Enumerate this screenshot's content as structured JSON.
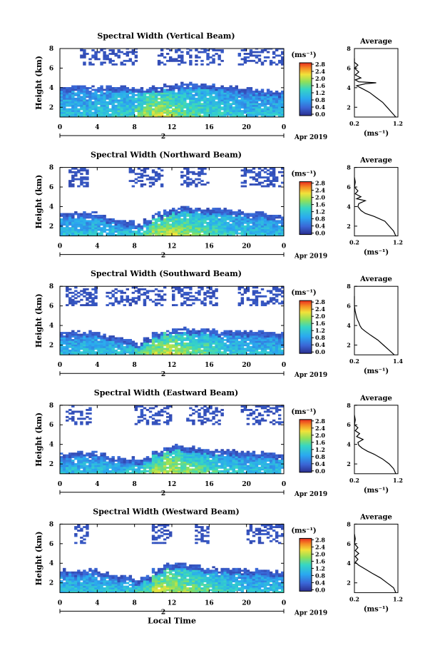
{
  "figure": {
    "colorbar_unit": "(ms⁻¹)",
    "colorbar_ticks": [
      "2.8",
      "2.4",
      "2.0",
      "1.6",
      "1.2",
      "0.8",
      "0.4",
      "0.0"
    ],
    "date_label": "Apr 2019",
    "day_marker": "2",
    "common_xlabel": "Local Time",
    "height_ylabel": "Height (km)",
    "average_title": "Average",
    "average_xlabel": "(ms⁻¹)"
  },
  "chart_data": [
    {
      "type": "heatmap",
      "title": "Spectral Width (Vertical Beam)",
      "xlabel": "",
      "ylabel": "Height (km)",
      "xlim": [
        0,
        24
      ],
      "ylim": [
        1,
        8
      ],
      "xticks": [
        "0",
        "4",
        "8",
        "12",
        "16",
        "20",
        "0"
      ],
      "yticks": [
        "2",
        "4",
        "6",
        "8"
      ],
      "colorbar": {
        "range": [
          0.0,
          2.8
        ],
        "label": "(ms⁻¹)"
      },
      "layers": [
        {
          "name": "lower",
          "top_km": [
            4.0,
            4.0,
            4.1,
            4.1,
            4.0,
            4.0,
            4.0,
            3.9,
            4.0,
            4.0,
            4.1,
            4.2,
            4.3,
            4.4,
            4.4,
            4.3,
            4.2,
            4.1,
            4.0,
            3.9,
            3.8,
            3.7,
            3.6,
            3.5
          ],
          "mean_width": [
            1.0,
            1.0,
            1.0,
            1.0,
            1.1,
            1.1,
            1.2,
            1.2,
            1.4,
            1.6,
            1.8,
            1.7,
            1.5,
            1.4,
            1.3,
            1.3,
            1.2,
            1.1,
            1.1,
            1.0,
            1.0,
            1.0,
            1.0,
            1.0
          ]
        },
        {
          "name": "upper",
          "bottom_km": 6.3,
          "top_km": 8.0,
          "x_ranges": [
            [
              2.2,
              8.2
            ],
            [
              10.5,
              14.0
            ],
            [
              14.5,
              17.5
            ],
            [
              19.0,
              24.0
            ]
          ],
          "mean_width": 0.2
        }
      ],
      "profile": {
        "xlim": [
          0.2,
          1.2
        ],
        "xticks": [
          "0.2",
          "1.2"
        ],
        "yticks": [
          "2",
          "4",
          "6",
          "8"
        ],
        "heights": [
          1.0,
          1.5,
          2.0,
          2.5,
          3.0,
          3.5,
          3.9,
          4.2,
          4.4,
          4.5,
          4.6,
          4.8,
          5.0,
          5.3,
          5.6,
          6.0,
          6.3,
          6.6,
          7.0
        ],
        "values": [
          1.15,
          1.05,
          0.95,
          0.85,
          0.7,
          0.55,
          0.38,
          0.25,
          0.45,
          0.7,
          0.3,
          0.22,
          0.35,
          0.22,
          0.3,
          0.2,
          0.28,
          0.2,
          0.2
        ]
      }
    },
    {
      "type": "heatmap",
      "title": "Spectral Width (Northward Beam)",
      "xlabel": "",
      "ylabel": "Height (km)",
      "xlim": [
        0,
        24
      ],
      "ylim": [
        1,
        8
      ],
      "xticks": [
        "0",
        "4",
        "8",
        "12",
        "16",
        "20",
        "0"
      ],
      "yticks": [
        "2",
        "4",
        "6",
        "8"
      ],
      "colorbar": {
        "range": [
          0.0,
          2.8
        ],
        "label": "(ms⁻¹)"
      },
      "layers": [
        {
          "name": "lower",
          "top_km": [
            3.3,
            3.3,
            3.3,
            3.3,
            3.0,
            2.8,
            2.6,
            2.4,
            2.2,
            2.6,
            3.2,
            3.6,
            3.7,
            3.8,
            3.8,
            3.8,
            3.7,
            3.6,
            3.5,
            3.4,
            3.3,
            3.3,
            3.2,
            3.1
          ],
          "mean_width": [
            1.0,
            1.0,
            1.0,
            1.0,
            1.0,
            1.0,
            1.0,
            1.1,
            1.2,
            1.4,
            1.7,
            1.8,
            1.7,
            1.6,
            1.5,
            1.4,
            1.3,
            1.2,
            1.1,
            1.1,
            1.0,
            1.0,
            1.0,
            1.0
          ]
        },
        {
          "name": "upper",
          "bottom_km": 6.0,
          "top_km": 8.0,
          "x_ranges": [
            [
              0.8,
              3.2
            ],
            [
              7.5,
              11.0
            ],
            [
              13.0,
              16.0
            ],
            [
              19.5,
              24.0
            ]
          ],
          "mean_width": 0.2
        }
      ],
      "profile": {
        "xlim": [
          0.2,
          1.2
        ],
        "xticks": [
          "0.2",
          "1.2"
        ],
        "yticks": [
          "2",
          "4",
          "6",
          "8"
        ],
        "heights": [
          1.0,
          1.5,
          2.0,
          2.5,
          3.0,
          3.3,
          3.6,
          4.0,
          4.3,
          4.6,
          4.8,
          5.0,
          5.3,
          5.6,
          6.0,
          6.5,
          7.0
        ],
        "values": [
          1.15,
          1.1,
          1.0,
          0.9,
          0.65,
          0.45,
          0.35,
          0.28,
          0.3,
          0.45,
          0.25,
          0.35,
          0.22,
          0.28,
          0.2,
          0.22,
          0.2
        ]
      }
    },
    {
      "type": "heatmap",
      "title": "Spectral Width (Southward Beam)",
      "xlabel": "",
      "ylabel": "Height (km)",
      "xlim": [
        0,
        24
      ],
      "ylim": [
        1,
        8
      ],
      "xticks": [
        "0",
        "4",
        "8",
        "12",
        "16",
        "20",
        "0"
      ],
      "yticks": [
        "2",
        "4",
        "6",
        "8"
      ],
      "colorbar": {
        "range": [
          0.0,
          2.8
        ],
        "label": "(ms⁻¹)"
      },
      "layers": [
        {
          "name": "lower",
          "top_km": [
            3.3,
            3.3,
            3.3,
            3.3,
            3.1,
            2.9,
            2.7,
            2.4,
            2.2,
            2.6,
            3.2,
            3.6,
            3.6,
            3.6,
            3.5,
            3.5,
            3.4,
            3.4,
            3.3,
            3.3,
            3.3,
            3.3,
            3.2,
            3.2
          ],
          "mean_width": [
            1.0,
            1.0,
            1.0,
            1.0,
            1.0,
            1.0,
            1.0,
            1.1,
            1.3,
            1.5,
            1.7,
            1.8,
            1.7,
            1.6,
            1.5,
            1.4,
            1.3,
            1.2,
            1.1,
            1.0,
            1.0,
            1.0,
            1.0,
            1.0
          ]
        },
        {
          "name": "upper",
          "bottom_km": 6.0,
          "top_km": 8.0,
          "x_ranges": [
            [
              0.5,
              4.0
            ],
            [
              5.0,
              11.5
            ],
            [
              12.0,
              17.0
            ],
            [
              19.0,
              24.0
            ]
          ],
          "mean_width": 0.2
        }
      ],
      "profile": {
        "xlim": [
          0.2,
          1.4
        ],
        "xticks": [
          "0.2",
          "1.4"
        ],
        "yticks": [
          "2",
          "4",
          "6",
          "8"
        ],
        "heights": [
          1.0,
          1.5,
          2.0,
          2.5,
          3.0,
          3.4,
          3.7,
          4.0,
          4.3,
          4.6,
          5.0,
          5.5,
          6.0,
          6.5,
          7.0
        ],
        "values": [
          1.3,
          1.15,
          1.0,
          0.85,
          0.65,
          0.5,
          0.4,
          0.35,
          0.32,
          0.28,
          0.25,
          0.22,
          0.2,
          0.2,
          0.2
        ]
      }
    },
    {
      "type": "heatmap",
      "title": "Spectral Width (Eastward Beam)",
      "xlabel": "",
      "ylabel": "Height (km)",
      "xlim": [
        0,
        24
      ],
      "ylim": [
        1,
        8
      ],
      "xticks": [
        "0",
        "4",
        "8",
        "12",
        "16",
        "20",
        "0"
      ],
      "yticks": [
        "2",
        "4",
        "6",
        "8"
      ],
      "colorbar": {
        "range": [
          0.0,
          2.8
        ],
        "label": "(ms⁻¹)"
      },
      "layers": [
        {
          "name": "lower",
          "top_km": [
            3.0,
            3.0,
            3.1,
            3.1,
            3.0,
            2.8,
            2.6,
            2.5,
            2.3,
            2.6,
            3.3,
            3.8,
            3.8,
            3.7,
            3.6,
            3.5,
            3.4,
            3.4,
            3.3,
            3.2,
            3.2,
            3.1,
            3.1,
            3.0
          ],
          "mean_width": [
            1.0,
            1.0,
            1.0,
            1.0,
            1.0,
            1.0,
            1.0,
            1.1,
            1.2,
            1.4,
            1.7,
            1.8,
            1.7,
            1.6,
            1.5,
            1.4,
            1.3,
            1.2,
            1.1,
            1.0,
            1.0,
            1.0,
            1.0,
            1.0
          ]
        },
        {
          "name": "upper",
          "bottom_km": 6.0,
          "top_km": 8.0,
          "x_ranges": [
            [
              0.5,
              3.5
            ],
            [
              8.0,
              12.0
            ],
            [
              13.5,
              17.5
            ],
            [
              19.5,
              24.0
            ]
          ],
          "mean_width": 0.2
        }
      ],
      "profile": {
        "xlim": [
          0.2,
          1.2
        ],
        "xticks": [
          "0.2",
          "1.2"
        ],
        "yticks": [
          "2",
          "4",
          "6",
          "8"
        ],
        "heights": [
          1.0,
          1.5,
          2.0,
          2.5,
          3.0,
          3.3,
          3.6,
          3.9,
          4.2,
          4.5,
          4.8,
          5.1,
          5.4,
          5.7,
          6.0,
          6.5,
          7.0
        ],
        "values": [
          1.15,
          1.1,
          1.0,
          0.85,
          0.65,
          0.5,
          0.38,
          0.3,
          0.28,
          0.4,
          0.25,
          0.32,
          0.22,
          0.28,
          0.2,
          0.22,
          0.2
        ]
      }
    },
    {
      "type": "heatmap",
      "title": "Spectral Width (Westward Beam)",
      "xlabel": "Local Time",
      "ylabel": "Height (km)",
      "xlim": [
        0,
        24
      ],
      "ylim": [
        1,
        8
      ],
      "xticks": [
        "0",
        "4",
        "8",
        "12",
        "16",
        "20",
        "0"
      ],
      "yticks": [
        "2",
        "4",
        "6",
        "8"
      ],
      "colorbar": {
        "range": [
          0.0,
          2.8
        ],
        "label": "(ms⁻¹)"
      },
      "layers": [
        {
          "name": "lower",
          "top_km": [
            3.2,
            3.2,
            3.3,
            3.3,
            3.1,
            2.9,
            2.7,
            2.5,
            2.3,
            2.6,
            3.3,
            3.8,
            3.9,
            3.8,
            3.7,
            3.5,
            3.4,
            3.4,
            3.3,
            3.3,
            3.2,
            3.2,
            3.1,
            3.1
          ],
          "mean_width": [
            1.0,
            1.0,
            1.0,
            1.0,
            1.0,
            1.0,
            1.0,
            1.1,
            1.2,
            1.4,
            1.7,
            1.8,
            1.7,
            1.6,
            1.5,
            1.4,
            1.3,
            1.2,
            1.1,
            1.0,
            1.0,
            1.0,
            1.0,
            1.0
          ]
        },
        {
          "name": "upper",
          "bottom_km": 6.0,
          "top_km": 8.0,
          "x_ranges": [
            [
              1.5,
              3.0
            ],
            [
              10.0,
              12.0
            ],
            [
              14.5,
              16.0
            ],
            [
              20.0,
              24.0
            ]
          ],
          "mean_width": 0.2
        }
      ],
      "profile": {
        "xlim": [
          0.2,
          1.2
        ],
        "xticks": [
          "0.2",
          "1.2"
        ],
        "yticks": [
          "2",
          "4",
          "6",
          "8"
        ],
        "heights": [
          1.0,
          1.5,
          2.0,
          2.5,
          3.0,
          3.4,
          3.8,
          4.1,
          4.4,
          4.7,
          5.0,
          5.3,
          5.6,
          6.0,
          6.5,
          7.0
        ],
        "values": [
          1.15,
          1.1,
          0.95,
          0.8,
          0.6,
          0.45,
          0.3,
          0.22,
          0.28,
          0.22,
          0.3,
          0.22,
          0.28,
          0.2,
          0.22,
          0.2
        ]
      }
    }
  ]
}
